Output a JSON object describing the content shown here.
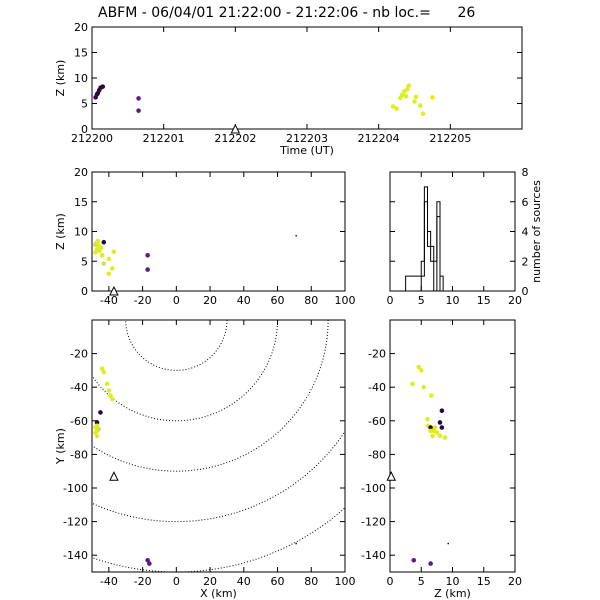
{
  "title": "ABFM - 06/04/01 21:22:00 - 21:22:06 - nb loc.=      26",
  "marker": "triangle",
  "colors": {
    "axis": "#000000",
    "contour": "#000000",
    "early": "#2a0a3a",
    "mid": "#5c1a8a",
    "late": "#ddee22",
    "late2": "#c8e64a",
    "late3": "#f2e600"
  },
  "chart_data": [
    {
      "panel": "z-vs-time",
      "type": "scatter",
      "xlabel": "Time (UT)",
      "ylabel": "Z (km)",
      "xlim": [
        212200,
        212206
      ],
      "ylim": [
        0,
        20
      ],
      "xticks": [
        "212200",
        "212201",
        "212202",
        "212203",
        "212204",
        "212205"
      ],
      "yticks": [
        "0",
        "5",
        "10",
        "15",
        "20"
      ],
      "marker_x": 212202.0,
      "marker_y": 0,
      "points": [
        {
          "x": 212200.05,
          "y": 6.2,
          "c": "early"
        },
        {
          "x": 212200.08,
          "y": 7.0,
          "c": "early"
        },
        {
          "x": 212200.1,
          "y": 7.6,
          "c": "early"
        },
        {
          "x": 212200.12,
          "y": 8.1,
          "c": "early"
        },
        {
          "x": 212200.15,
          "y": 8.3,
          "c": "early"
        },
        {
          "x": 212200.07,
          "y": 6.8,
          "c": "early"
        },
        {
          "x": 212200.65,
          "y": 6.0,
          "c": "mid"
        },
        {
          "x": 212200.65,
          "y": 3.6,
          "c": "mid"
        },
        {
          "x": 212204.2,
          "y": 4.4,
          "c": "late"
        },
        {
          "x": 212204.25,
          "y": 4.0,
          "c": "late"
        },
        {
          "x": 212204.3,
          "y": 6.1,
          "c": "late"
        },
        {
          "x": 212204.33,
          "y": 6.7,
          "c": "late"
        },
        {
          "x": 212204.36,
          "y": 7.4,
          "c": "late"
        },
        {
          "x": 212204.4,
          "y": 7.8,
          "c": "late"
        },
        {
          "x": 212204.42,
          "y": 8.5,
          "c": "late"
        },
        {
          "x": 212204.38,
          "y": 6.4,
          "c": "late"
        },
        {
          "x": 212204.5,
          "y": 5.4,
          "c": "late"
        },
        {
          "x": 212204.52,
          "y": 6.3,
          "c": "late"
        },
        {
          "x": 212204.58,
          "y": 4.6,
          "c": "late"
        },
        {
          "x": 212204.62,
          "y": 3.0,
          "c": "late"
        },
        {
          "x": 212204.75,
          "y": 6.2,
          "c": "late3"
        }
      ]
    },
    {
      "panel": "z-vs-x",
      "type": "scatter",
      "xlabel": "",
      "ylabel": "Z (km)",
      "xlim": [
        -50,
        100
      ],
      "ylim": [
        0,
        20
      ],
      "xticks": [
        "-40",
        "-20",
        "0",
        "20",
        "40",
        "60",
        "80",
        "100"
      ],
      "yticks": [
        "0",
        "5",
        "10",
        "15",
        "20"
      ],
      "marker_x": -37,
      "marker_y": 0,
      "points": [
        {
          "x": -48,
          "y": 6.5,
          "c": "late"
        },
        {
          "x": -47,
          "y": 7.0,
          "c": "late"
        },
        {
          "x": -46,
          "y": 7.6,
          "c": "late"
        },
        {
          "x": -47.5,
          "y": 8.0,
          "c": "late"
        },
        {
          "x": -46.5,
          "y": 8.4,
          "c": "late"
        },
        {
          "x": -45.5,
          "y": 6.8,
          "c": "late"
        },
        {
          "x": -44.5,
          "y": 7.3,
          "c": "late"
        },
        {
          "x": -48,
          "y": 7.8,
          "c": "late2"
        },
        {
          "x": -43,
          "y": 8.2,
          "c": "early"
        },
        {
          "x": -44,
          "y": 6.0,
          "c": "late"
        },
        {
          "x": -40,
          "y": 5.4,
          "c": "late"
        },
        {
          "x": -38,
          "y": 3.8,
          "c": "late"
        },
        {
          "x": -40,
          "y": 2.9,
          "c": "late"
        },
        {
          "x": -37,
          "y": 6.6,
          "c": "late"
        },
        {
          "x": -43,
          "y": 4.6,
          "c": "late2"
        },
        {
          "x": -17,
          "y": 6.0,
          "c": "mid"
        },
        {
          "x": -17,
          "y": 3.6,
          "c": "mid"
        },
        {
          "x": 71,
          "y": 9.3,
          "c": "dot"
        }
      ]
    },
    {
      "panel": "histogram-z",
      "type": "bar",
      "xlabel": "",
      "ylabel": "number of sources",
      "xlim": [
        0,
        20
      ],
      "ylim": [
        0,
        8
      ],
      "xticks": [
        "0",
        "5",
        "10",
        "15",
        "20"
      ],
      "yticks": [
        "0",
        "2",
        "4",
        "6",
        "8"
      ],
      "bin_edges": [
        2.5,
        3.0,
        3.5,
        4.0,
        4.5,
        5.0,
        5.5,
        6.0,
        6.5,
        7.0,
        7.5,
        8.0,
        8.5
      ],
      "counts": [
        1,
        1,
        1,
        1,
        1,
        2,
        7,
        4,
        3,
        2,
        6,
        1
      ],
      "mirror_counts": [
        0,
        0,
        0,
        0,
        0,
        1,
        6,
        3,
        2,
        0,
        5,
        0
      ]
    },
    {
      "panel": "y-vs-x",
      "type": "scatter",
      "xlabel": "X (km)",
      "ylabel": "Y (km)",
      "xlim": [
        -50,
        100
      ],
      "ylim": [
        -150,
        0
      ],
      "xticks": [
        "-40",
        "-20",
        "0",
        "20",
        "40",
        "60",
        "80",
        "100"
      ],
      "yticks": [
        "-140",
        "-120",
        "-100",
        "-80",
        "-60",
        "-40",
        "-20"
      ],
      "marker_x": -37,
      "marker_y": -93,
      "contour_center": [
        0,
        0
      ],
      "contour_radii": [
        30,
        60,
        90,
        120,
        150
      ],
      "points": [
        {
          "x": -44,
          "y": -29,
          "c": "late"
        },
        {
          "x": -43,
          "y": -31,
          "c": "late"
        },
        {
          "x": -41,
          "y": -38,
          "c": "late"
        },
        {
          "x": -40,
          "y": -42,
          "c": "late"
        },
        {
          "x": -39,
          "y": -45,
          "c": "late"
        },
        {
          "x": -38,
          "y": -47,
          "c": "late"
        },
        {
          "x": -45,
          "y": -55,
          "c": "early"
        },
        {
          "x": -47,
          "y": -61,
          "c": "early"
        },
        {
          "x": -47,
          "y": -63,
          "c": "late"
        },
        {
          "x": -48,
          "y": -64,
          "c": "late"
        },
        {
          "x": -47,
          "y": -66,
          "c": "late"
        },
        {
          "x": -48,
          "y": -67,
          "c": "late"
        },
        {
          "x": -46,
          "y": -65,
          "c": "late2"
        },
        {
          "x": -47,
          "y": -69,
          "c": "late"
        },
        {
          "x": -17,
          "y": -143,
          "c": "mid"
        },
        {
          "x": -16,
          "y": -145,
          "c": "mid"
        },
        {
          "x": 71,
          "y": -133,
          "c": "dot"
        }
      ]
    },
    {
      "panel": "y-vs-z",
      "type": "scatter",
      "xlabel": "Z (km)",
      "ylabel": "",
      "xlim": [
        0,
        20
      ],
      "ylim": [
        -150,
        0
      ],
      "xticks": [
        "0",
        "5",
        "10",
        "15",
        "20"
      ],
      "yticks": [
        "-140",
        "-120",
        "-100",
        "-80",
        "-60",
        "-40",
        "-20"
      ],
      "marker_x": 0.2,
      "marker_y": -93,
      "points": [
        {
          "x": 4.6,
          "y": -28,
          "c": "late"
        },
        {
          "x": 5.0,
          "y": -30,
          "c": "late"
        },
        {
          "x": 3.6,
          "y": -38,
          "c": "late"
        },
        {
          "x": 5.4,
          "y": -40,
          "c": "late"
        },
        {
          "x": 6.6,
          "y": -45,
          "c": "late"
        },
        {
          "x": 8.3,
          "y": -54,
          "c": "early"
        },
        {
          "x": 6.0,
          "y": -59,
          "c": "late"
        },
        {
          "x": 8.0,
          "y": -61,
          "c": "early"
        },
        {
          "x": 6.1,
          "y": -63,
          "c": "late"
        },
        {
          "x": 6.5,
          "y": -64,
          "c": "early"
        },
        {
          "x": 7.2,
          "y": -64,
          "c": "late"
        },
        {
          "x": 8.3,
          "y": -64,
          "c": "early"
        },
        {
          "x": 6.5,
          "y": -66,
          "c": "late"
        },
        {
          "x": 7.0,
          "y": -66,
          "c": "late3"
        },
        {
          "x": 7.5,
          "y": -67,
          "c": "late"
        },
        {
          "x": 6.8,
          "y": -69,
          "c": "late"
        },
        {
          "x": 8.0,
          "y": -69,
          "c": "late"
        },
        {
          "x": 8.8,
          "y": -70,
          "c": "late"
        },
        {
          "x": 3.8,
          "y": -143,
          "c": "mid"
        },
        {
          "x": 6.5,
          "y": -145,
          "c": "mid"
        },
        {
          "x": 9.3,
          "y": -133,
          "c": "dot"
        }
      ]
    }
  ]
}
